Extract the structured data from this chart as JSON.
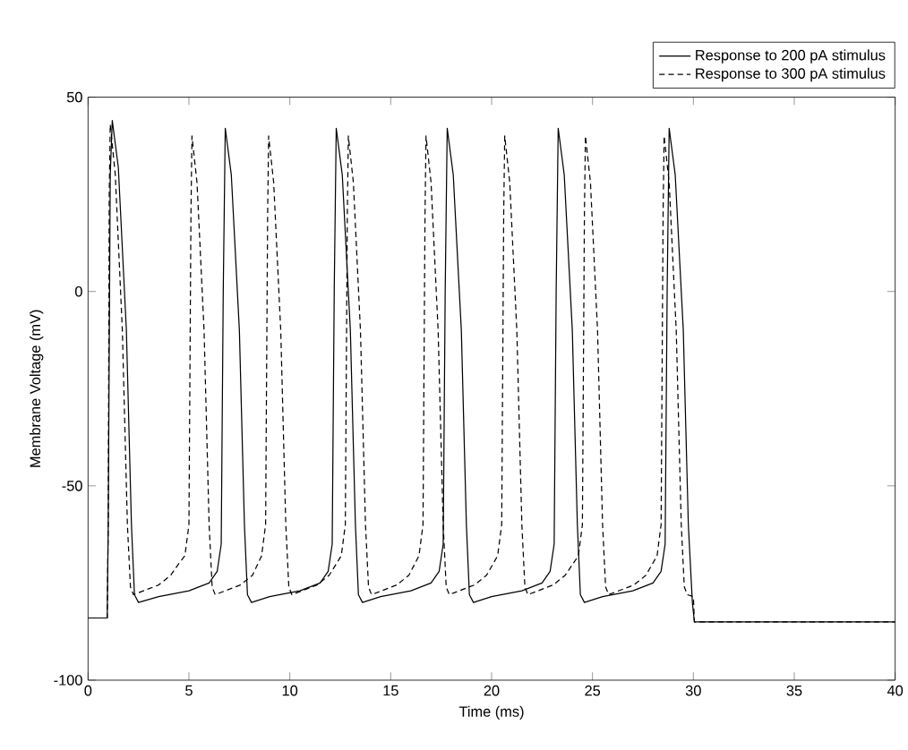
{
  "chart_data": {
    "type": "line",
    "xlabel": "Time (ms)",
    "ylabel": "Membrane Voltage (mV)",
    "xlim": [
      0,
      40
    ],
    "ylim": [
      -100,
      50
    ],
    "xticks": [
      0,
      5,
      10,
      15,
      20,
      25,
      30,
      35,
      40
    ],
    "yticks": [
      -100,
      -50,
      0,
      50
    ],
    "grid": false,
    "legend": "top right",
    "marker": "none",
    "series": [
      {
        "name": "Response to 200 pA stimulus",
        "color": "#000000",
        "line_style": "solid",
        "x": [
          0,
          0.95,
          1.0,
          1.1,
          1.2,
          1.5,
          1.9,
          2.15,
          2.3,
          2.5,
          3.5,
          5.0,
          6.0,
          6.4,
          6.6,
          6.7,
          6.8,
          7.1,
          7.5,
          7.75,
          7.9,
          8.1,
          9.0,
          10.5,
          11.5,
          11.9,
          12.1,
          12.2,
          12.3,
          12.6,
          13.0,
          13.25,
          13.4,
          13.6,
          14.5,
          16.0,
          17.0,
          17.4,
          17.6,
          17.7,
          17.8,
          18.1,
          18.5,
          18.75,
          18.9,
          19.1,
          20.0,
          21.5,
          22.5,
          22.9,
          23.1,
          23.2,
          23.3,
          23.6,
          24.0,
          24.25,
          24.4,
          24.6,
          25.5,
          27.0,
          28.0,
          28.4,
          28.6,
          28.7,
          28.8,
          29.1,
          29.5,
          29.75,
          29.95,
          30.05,
          40
        ],
        "values": [
          -84,
          -84,
          -60,
          30,
          44,
          32,
          -10,
          -60,
          -78,
          -80,
          -78.5,
          -77,
          -75,
          -72,
          -65,
          0,
          42,
          30,
          -10,
          -60,
          -78,
          -80,
          -78.5,
          -77,
          -75,
          -72,
          -65,
          0,
          42,
          30,
          -10,
          -60,
          -78,
          -80,
          -78.5,
          -77,
          -75,
          -72,
          -65,
          0,
          42,
          30,
          -10,
          -60,
          -78,
          -80,
          -78.5,
          -77,
          -75,
          -72,
          -65,
          0,
          42,
          30,
          -10,
          -60,
          -78,
          -80,
          -78.5,
          -77,
          -75,
          -72,
          -65,
          0,
          42,
          30,
          -10,
          -60,
          -80,
          -85,
          -85
        ]
      },
      {
        "name": "Response to 300 pA stimulus",
        "color": "#000000",
        "line_style": "dashed",
        "x": [
          0,
          0.95,
          1.0,
          1.05,
          1.1,
          1.35,
          1.7,
          1.95,
          2.1,
          2.25,
          3.5,
          4.1,
          4.5,
          4.8,
          5.0,
          5.1,
          5.15,
          5.4,
          5.75,
          6.0,
          6.15,
          6.3,
          7.55,
          8.15,
          8.6,
          8.8,
          8.9,
          8.95,
          9.2,
          9.55,
          9.8,
          9.95,
          10.1,
          11.35,
          11.95,
          12.55,
          12.75,
          12.85,
          12.9,
          13.15,
          13.5,
          13.75,
          13.9,
          14.05,
          15.3,
          15.9,
          16.4,
          16.6,
          16.7,
          16.75,
          17.0,
          17.35,
          17.6,
          17.75,
          17.9,
          19.15,
          19.75,
          20.3,
          20.5,
          20.6,
          20.65,
          20.9,
          21.25,
          21.5,
          21.65,
          21.8,
          23.05,
          23.65,
          24.3,
          24.5,
          24.6,
          24.65,
          24.9,
          25.25,
          25.5,
          25.65,
          25.8,
          27.05,
          27.65,
          28.2,
          28.4,
          28.5,
          28.55,
          28.8,
          29.15,
          29.4,
          29.55,
          29.7,
          30.0,
          30.05,
          40
        ],
        "values": [
          -84,
          -84,
          -60,
          25,
          43,
          30,
          -10,
          -60,
          -76,
          -78,
          -75.5,
          -73,
          -70,
          -68,
          -60,
          20,
          40,
          28,
          -10,
          -60,
          -76,
          -78,
          -75.5,
          -73,
          -68,
          -60,
          20,
          40,
          28,
          -10,
          -60,
          -76,
          -78,
          -75.5,
          -73,
          -68,
          -60,
          20,
          40,
          28,
          -10,
          -60,
          -76,
          -78,
          -75.5,
          -73,
          -68,
          -60,
          20,
          40,
          28,
          -10,
          -60,
          -76,
          -78,
          -75.5,
          -73,
          -68,
          -60,
          20,
          40,
          28,
          -10,
          -60,
          -76,
          -78,
          -75.5,
          -73,
          -68,
          -60,
          20,
          40,
          28,
          -10,
          -60,
          -76,
          -78,
          -75.5,
          -73,
          -68,
          -60,
          20,
          40,
          28,
          -10,
          -60,
          -76,
          -78,
          -78.5,
          -85,
          -85
        ]
      }
    ]
  }
}
